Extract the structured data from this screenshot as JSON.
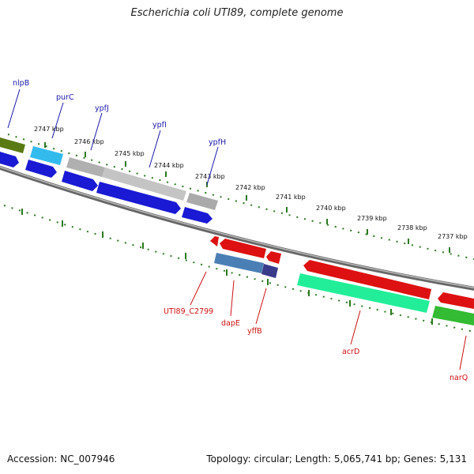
{
  "title": "Escherichia coli UTI89, complete genome",
  "footer": {
    "accession": "Accession: NC_007946",
    "info": "Topology: circular; Length: 5,065,741 bp; Genes: 5,131"
  },
  "colors": {
    "backbone": "#888888",
    "ticks": "#2a7a1e",
    "forward_label": "#1a1aaa",
    "reverse_label": "#cc1111"
  },
  "ruler_labels": [
    "2747 kbp",
    "2746 kbp",
    "2745 kbp",
    "2744 kbp",
    "2743 kbp",
    "2742 kbp",
    "2741 kbp",
    "2740 kbp",
    "2739 kbp",
    "2738 kbp",
    "2737 kbp"
  ],
  "gene_labels_forward": [
    "nlpB",
    "purC",
    "ypfJ",
    "ypfI",
    "ypfH"
  ],
  "gene_labels_reverse": [
    "UTI89_C2799",
    "dapE",
    "yffB",
    "acrD",
    "narQ"
  ]
}
